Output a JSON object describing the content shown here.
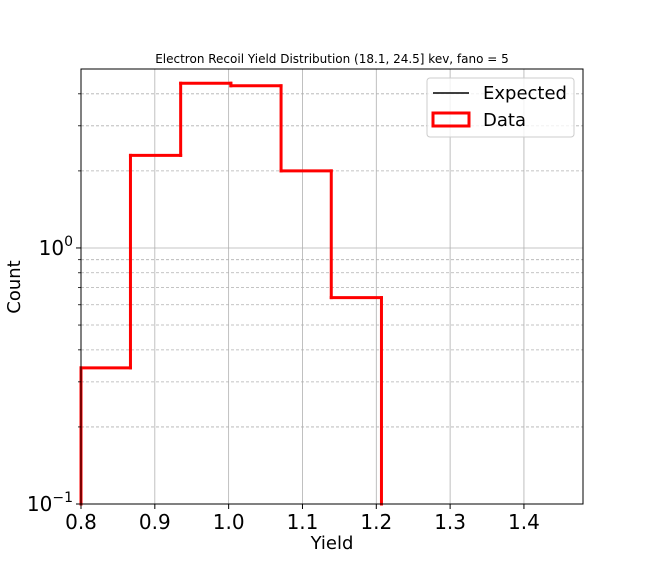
{
  "chart_data": {
    "type": "histogram",
    "title": "Electron Recoil Yield Distribution (18.1, 24.5] kev, fano = 5",
    "xlabel": "Yield",
    "ylabel": "Count",
    "xlim": [
      0.8,
      1.48
    ],
    "ylim": [
      0.1,
      5
    ],
    "yscale": "log",
    "grid": true,
    "legend_position": "top-right",
    "x_ticks": [
      "0.8",
      "0.9",
      "1.0",
      "1.1",
      "1.2",
      "1.3",
      "1.4"
    ],
    "y_ticks": [
      {
        "base": "10",
        "exp": "0",
        "value": 1
      },
      {
        "base": "10",
        "exp": "−1",
        "value": 0.1
      }
    ],
    "series": [
      {
        "name": "Expected",
        "style": "line",
        "color": "#000000",
        "values": []
      },
      {
        "name": "Data",
        "style": "step",
        "color": "#ff0000",
        "bin_edges": [
          0.8,
          0.867,
          0.935,
          1.003,
          1.071,
          1.139,
          1.207
        ],
        "counts": [
          0.34,
          2.3,
          4.4,
          4.3,
          2.0,
          0.64
        ]
      }
    ]
  }
}
